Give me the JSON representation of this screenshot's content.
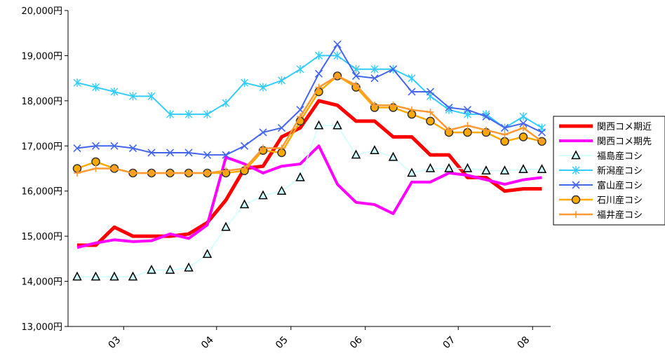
{
  "chart_data": {
    "type": "line",
    "title": "",
    "xlabel": "",
    "ylabel": "",
    "ylim": [
      13000,
      20000
    ],
    "yticks": [
      "13,000円",
      "14,000円",
      "15,000円",
      "16,000円",
      "17,000円",
      "18,000円",
      "19,000円",
      "20,000円"
    ],
    "x_tick_labels": [
      "03",
      "04",
      "05",
      "06",
      "07",
      "08"
    ],
    "x_tick_positions": [
      2.5,
      7.5,
      11.5,
      15.5,
      20.5,
      24.5
    ],
    "grid": false,
    "legend_position": "right",
    "x": [
      0,
      1,
      2,
      3,
      4,
      5,
      6,
      7,
      8,
      9,
      10,
      11,
      12,
      13,
      14,
      15,
      16,
      17,
      18,
      19,
      20,
      21,
      22,
      23,
      24,
      25
    ],
    "series": [
      {
        "name": "関西コメ期近",
        "color": "#ff0000",
        "marker": "none",
        "width": 5,
        "values": [
          14800,
          14800,
          15200,
          15000,
          15000,
          15000,
          15050,
          15300,
          15800,
          16500,
          16550,
          17200,
          17400,
          18000,
          17900,
          17550,
          17550,
          17200,
          17200,
          16800,
          16800,
          16300,
          16300,
          16000,
          16050,
          16050
        ]
      },
      {
        "name": "関西コメ期先",
        "color": "#ff00ff",
        "marker": "none",
        "width": 4,
        "values": [
          14750,
          14850,
          14920,
          14880,
          14900,
          15050,
          14950,
          15250,
          16750,
          16600,
          16400,
          16550,
          16600,
          17000,
          16150,
          15750,
          15700,
          15500,
          16200,
          16200,
          16400,
          16350,
          16250,
          16150,
          16250,
          16300
        ]
      },
      {
        "name": "福島産コシ",
        "color": "#ccffff",
        "marker": "triangle",
        "width": 1.5,
        "values": [
          14100,
          14100,
          14100,
          14100,
          14250,
          14250,
          14300,
          14600,
          15200,
          15700,
          15900,
          16000,
          16300,
          17450,
          17450,
          16800,
          16900,
          16750,
          16400,
          16500,
          16500,
          16500,
          16450,
          16450,
          16480,
          16480
        ]
      },
      {
        "name": "新潟産コシ",
        "color": "#33ccff",
        "marker": "star",
        "width": 2,
        "values": [
          18400,
          18300,
          18200,
          18100,
          18100,
          17700,
          17700,
          17700,
          17950,
          18400,
          18300,
          18450,
          18700,
          19000,
          19000,
          18700,
          18700,
          18700,
          18500,
          18100,
          17800,
          17700,
          17700,
          17400,
          17650,
          17400
        ]
      },
      {
        "name": "富山産コシ",
        "color": "#4466ee",
        "marker": "x",
        "width": 2,
        "values": [
          16950,
          17000,
          17000,
          16950,
          16850,
          16850,
          16850,
          16800,
          16800,
          17000,
          17300,
          17400,
          17800,
          18600,
          19250,
          18550,
          18500,
          18700,
          18200,
          18200,
          17850,
          17800,
          17650,
          17400,
          17500,
          17300
        ]
      },
      {
        "name": "石川産コシ",
        "color": "#ffaa00",
        "marker": "circle",
        "width": 2.5,
        "values": [
          16500,
          16650,
          16500,
          16400,
          16400,
          16400,
          16400,
          16400,
          16400,
          16450,
          16900,
          16850,
          17550,
          18200,
          18550,
          18300,
          17850,
          17850,
          17700,
          17550,
          17300,
          17300,
          17300,
          17100,
          17200,
          17100
        ]
      },
      {
        "name": "福井産コシ",
        "color": "#ff9933",
        "marker": "plus",
        "width": 2.5,
        "values": [
          16400,
          16500,
          16500,
          16400,
          16400,
          16400,
          16400,
          16400,
          16450,
          16500,
          16950,
          16950,
          17650,
          18300,
          18550,
          18350,
          17900,
          17900,
          17800,
          17750,
          17350,
          17450,
          17350,
          17250,
          17400,
          17100
        ]
      }
    ]
  }
}
